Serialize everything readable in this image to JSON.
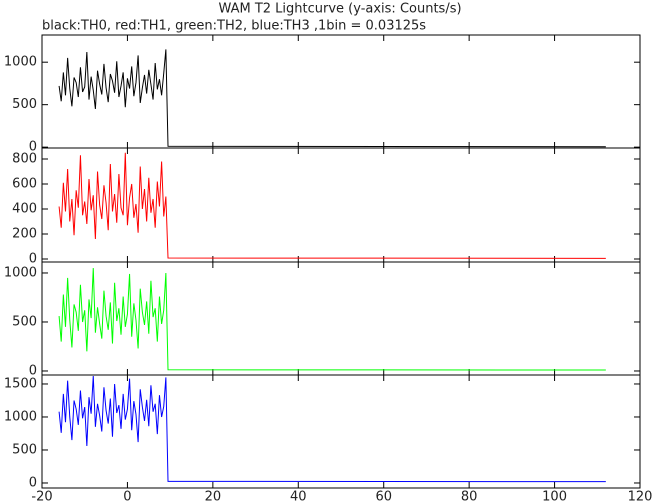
{
  "chart_data": [
    {
      "type": "line",
      "title": "WAM T2 Lightcurve (y-axis: Counts/s)",
      "subtitle": "black:TH0, red:TH1, green:TH2, blue:TH3 ,1bin = 0.03125s",
      "x": [
        -16,
        -15.5,
        -15,
        -14.5,
        -14,
        -13.5,
        -13,
        -12.5,
        -12,
        -11.5,
        -11,
        -10.5,
        -10,
        -9.5,
        -9,
        -8.5,
        -8,
        -7.5,
        -7,
        -6.5,
        -6,
        -5.5,
        -5,
        -4.5,
        -4,
        -3.5,
        -3,
        -2.5,
        -2,
        -1.5,
        -1,
        -0.5,
        0,
        0.5,
        1,
        1.5,
        2,
        2.5,
        3,
        3.5,
        4,
        4.5,
        5,
        5.5,
        6,
        6.5,
        7,
        7.5,
        8,
        8.5,
        9,
        9.5,
        112
      ],
      "series": [
        {
          "name": "TH0",
          "color": "#000000",
          "values": [
            720,
            540,
            880,
            610,
            1050,
            690,
            480,
            820,
            760,
            590,
            940,
            650,
            710,
            1120,
            560,
            830,
            670,
            450,
            900,
            740,
            620,
            980,
            700,
            530,
            860,
            780,
            640,
            1010,
            590,
            720,
            880,
            470,
            810,
            690,
            950,
            600,
            760,
            1080,
            520,
            700,
            850,
            630,
            910,
            740,
            560,
            990,
            680,
            800,
            610,
            870,
            1150,
            10,
            5
          ]
        }
      ],
      "xlim": [
        -20,
        120
      ],
      "ylim": [
        -10,
        1320
      ],
      "yticks": [
        0,
        500,
        1000
      ]
    },
    {
      "type": "line",
      "x": [
        -16,
        -15.5,
        -15,
        -14.5,
        -14,
        -13.5,
        -13,
        -12.5,
        -12,
        -11.5,
        -11,
        -10.5,
        -10,
        -9.5,
        -9,
        -8.5,
        -8,
        -7.5,
        -7,
        -6.5,
        -6,
        -5.5,
        -5,
        -4.5,
        -4,
        -3.5,
        -3,
        -2.5,
        -2,
        -1.5,
        -1,
        -0.5,
        0,
        0.5,
        1,
        1.5,
        2,
        2.5,
        3,
        3.5,
        4,
        4.5,
        5,
        5.5,
        6,
        6.5,
        7,
        7.5,
        8,
        8.5,
        9,
        9.5,
        112
      ],
      "series": [
        {
          "name": "TH1",
          "color": "#ff0000",
          "values": [
            420,
            250,
            610,
            380,
            720,
            300,
            480,
            190,
            550,
            410,
            830,
            350,
            460,
            280,
            640,
            390,
            510,
            160,
            700,
            430,
            320,
            590,
            450,
            230,
            760,
            380,
            520,
            290,
            680,
            410,
            350,
            850,
            270,
            490,
            600,
            330,
            440,
            210,
            740,
            400,
            560,
            300,
            650,
            370,
            480,
            250,
            620,
            420,
            780,
            340,
            500,
            8,
            5
          ]
        }
      ],
      "xlim": [
        -20,
        120
      ],
      "ylim": [
        -24,
        888
      ],
      "yticks": [
        0,
        200,
        400,
        600,
        800
      ]
    },
    {
      "type": "line",
      "x": [
        -16,
        -15.5,
        -15,
        -14.5,
        -14,
        -13.5,
        -13,
        -12.5,
        -12,
        -11.5,
        -11,
        -10.5,
        -10,
        -9.5,
        -9,
        -8.5,
        -8,
        -7.5,
        -7,
        -6.5,
        -6,
        -5.5,
        -5,
        -4.5,
        -4,
        -3.5,
        -3,
        -2.5,
        -2,
        -1.5,
        -1,
        -0.5,
        0,
        0.5,
        1,
        1.5,
        2,
        2.5,
        3,
        3.5,
        4,
        4.5,
        5,
        5.5,
        6,
        6.5,
        7,
        7.5,
        8,
        8.5,
        9,
        9.5,
        112
      ],
      "series": [
        {
          "name": "TH2",
          "color": "#00ff00",
          "values": [
            560,
            300,
            780,
            450,
            950,
            520,
            240,
            680,
            600,
            410,
            880,
            500,
            620,
            200,
            730,
            540,
            1050,
            390,
            650,
            480,
            330,
            820,
            560,
            420,
            700,
            280,
            900,
            510,
            640,
            370,
            760,
            450,
            580,
            990,
            350,
            690,
            520,
            230,
            840,
            600,
            470,
            710,
            380,
            920,
            550,
            640,
            300,
            760,
            480,
            620,
            1000,
            12,
            10
          ]
        }
      ],
      "xlim": [
        -20,
        120
      ],
      "ylim": [
        -41,
        1112
      ],
      "yticks": [
        0,
        500,
        1000
      ]
    },
    {
      "type": "line",
      "x": [
        -16,
        -15.5,
        -15,
        -14.5,
        -14,
        -13.5,
        -13,
        -12.5,
        -12,
        -11.5,
        -11,
        -10.5,
        -10,
        -9.5,
        -9,
        -8.5,
        -8,
        -7.5,
        -7,
        -6.5,
        -6,
        -5.5,
        -5,
        -4.5,
        -4,
        -3.5,
        -3,
        -2.5,
        -2,
        -1.5,
        -1,
        -0.5,
        0,
        0.5,
        1,
        1.5,
        2,
        2.5,
        3,
        3.5,
        4,
        4.5,
        5,
        5.5,
        6,
        6.5,
        7,
        7.5,
        8,
        8.5,
        9,
        9.5,
        112
      ],
      "series": [
        {
          "name": "TH3",
          "color": "#0000ff",
          "values": [
            1080,
            760,
            1350,
            920,
            1550,
            1000,
            650,
            1250,
            1120,
            880,
            1400,
            980,
            1150,
            560,
            1300,
            1050,
            1620,
            850,
            1200,
            1020,
            780,
            1450,
            1100,
            900,
            1280,
            700,
            1500,
            1060,
            1180,
            820,
            1350,
            960,
            1120,
            1580,
            800,
            1240,
            1040,
            620,
            1420,
            1150,
            940,
            1260,
            860,
            1480,
            1080,
            1200,
            740,
            1330,
            1000,
            1160,
            1600,
            25,
            20
          ]
        }
      ],
      "xlim": [
        -20,
        120
      ],
      "ylim": [
        -76,
        1636
      ],
      "yticks": [
        0,
        500,
        1000,
        1500
      ],
      "xticks": [
        -20,
        0,
        20,
        40,
        60,
        80,
        100,
        120
      ]
    }
  ]
}
